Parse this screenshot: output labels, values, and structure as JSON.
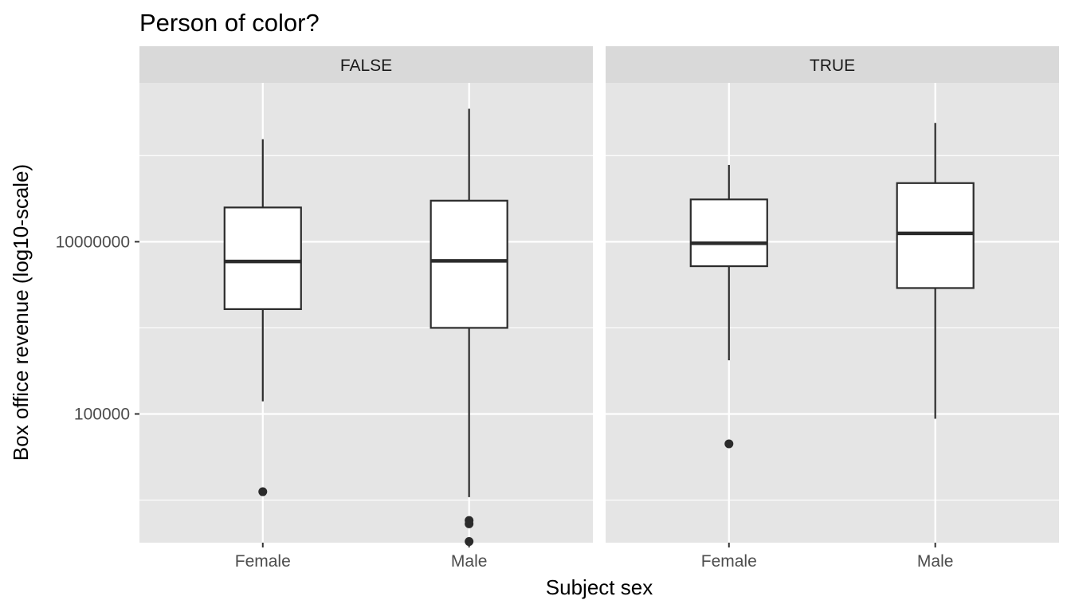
{
  "chart_data": {
    "type": "boxplot",
    "title": "Person of color?",
    "xlabel": "Subject sex",
    "ylabel": "Box office revenue (log10-scale)",
    "y_scale": "log10",
    "y_ticks": [
      100000,
      10000000
    ],
    "y_tick_labels": [
      "100000",
      "10000000"
    ],
    "ylim": [
      3200,
      700000000
    ],
    "categories": [
      "Female",
      "Male"
    ],
    "grid": true,
    "facets": [
      {
        "label": "FALSE",
        "boxes": [
          {
            "category": "Female",
            "whisker_low": 140000,
            "q1": 1650000,
            "median": 5900000,
            "q3": 25000000,
            "whisker_high": 155000000,
            "outliers": [
              12500
            ]
          },
          {
            "category": "Male",
            "whisker_low": 10800,
            "q1": 1000000,
            "median": 6000000,
            "q3": 30000000,
            "whisker_high": 350000000,
            "outliers": [
              5800,
              5300,
              3300
            ]
          }
        ]
      },
      {
        "label": "TRUE",
        "boxes": [
          {
            "category": "Female",
            "whisker_low": 420000,
            "q1": 5200000,
            "median": 9600000,
            "q3": 31000000,
            "whisker_high": 78000000,
            "outliers": [
              45000
            ]
          },
          {
            "category": "Male",
            "whisker_low": 88000,
            "q1": 2900000,
            "median": 12500000,
            "q3": 48000000,
            "whisker_high": 240000000,
            "outliers": []
          }
        ]
      }
    ],
    "colors": {
      "panel_background": "#e5e5e5",
      "strip_background": "#d9d9d9",
      "grid": "#ffffff",
      "box_fill": "#ffffff",
      "box_line": "#2b2b2b"
    }
  }
}
